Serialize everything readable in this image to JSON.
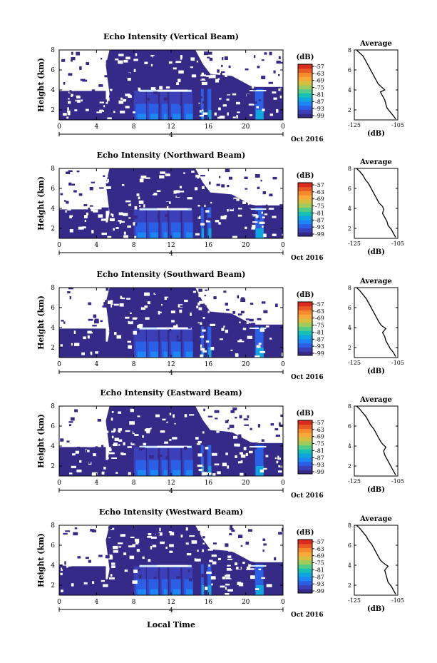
{
  "figure": {
    "xlabel_bottom": "Local Time",
    "date_label": "Oct 2016",
    "date_day": "4",
    "colorbar_units": "(dB)",
    "average_title": "Average",
    "average_xlabel": "(dB)",
    "colormap": [
      "#352a87",
      "#3b3fb8",
      "#2b5fe6",
      "#1c86f5",
      "#0fa6df",
      "#18bfb5",
      "#52cc8a",
      "#9fca5c",
      "#d6be3e",
      "#f9a83a",
      "#f58a2e",
      "#ea5a25",
      "#d92c1c"
    ]
  },
  "chart_data": [
    {
      "type": "heatmap",
      "title": "Echo Intensity (Vertical Beam)",
      "ylabel": "Height (km)",
      "xlim": [
        0,
        24
      ],
      "ylim": [
        1,
        8
      ],
      "xticks": [
        "0",
        "4",
        "8",
        "12",
        "16",
        "20",
        "0"
      ],
      "yticks": [
        "2",
        "4",
        "6",
        "8"
      ],
      "colorbar": {
        "units": "(dB)",
        "ticks": [
          "-57",
          "-63",
          "-69",
          "-75",
          "-81",
          "-87",
          "-93",
          "-99"
        ]
      },
      "average_profile": {
        "title": "Average",
        "xlabel": "(dB)",
        "xlim": [
          -125,
          -105
        ],
        "xticks": [
          "-125",
          "-105"
        ],
        "ylim": [
          1,
          8
        ],
        "yticks": [
          "2",
          "4",
          "6",
          "8"
        ],
        "points": [
          [
            -106,
            1.1
          ],
          [
            -107,
            1.4
          ],
          [
            -108.5,
            1.8
          ],
          [
            -110,
            2.2
          ],
          [
            -110.5,
            2.6
          ],
          [
            -111,
            3.0
          ],
          [
            -112,
            3.4
          ],
          [
            -113,
            3.8
          ],
          [
            -111,
            4.0
          ],
          [
            -112.5,
            4.3
          ],
          [
            -114,
            4.6
          ],
          [
            -115,
            5.0
          ],
          [
            -116,
            5.4
          ],
          [
            -117,
            5.8
          ],
          [
            -118,
            6.2
          ],
          [
            -119,
            6.6
          ],
          [
            -120,
            7.0
          ],
          [
            -121,
            7.4
          ],
          [
            -123,
            7.8
          ],
          [
            -124,
            8.0
          ]
        ]
      }
    },
    {
      "type": "heatmap",
      "title": "Echo Intensity (Northward Beam)",
      "ylabel": "Height (km)",
      "xlim": [
        0,
        24
      ],
      "ylim": [
        1,
        8
      ],
      "xticks": [
        "0",
        "4",
        "8",
        "12",
        "16",
        "20",
        "0"
      ],
      "yticks": [
        "2",
        "4",
        "6",
        "8"
      ],
      "colorbar": {
        "units": "(dB)",
        "ticks": [
          "-57",
          "-63",
          "-69",
          "-75",
          "-81",
          "-87",
          "-93",
          "-99"
        ]
      },
      "average_profile": {
        "title": "Average",
        "xlabel": "(dB)",
        "xlim": [
          -125,
          -105
        ],
        "xticks": [
          "-125",
          "-105"
        ],
        "ylim": [
          1,
          8
        ],
        "yticks": [
          "2",
          "4",
          "6",
          "8"
        ],
        "points": [
          [
            -106,
            1.1
          ],
          [
            -107,
            1.5
          ],
          [
            -108,
            1.9
          ],
          [
            -109.5,
            2.3
          ],
          [
            -110,
            2.7
          ],
          [
            -111,
            3.1
          ],
          [
            -112,
            3.5
          ],
          [
            -111.5,
            3.9
          ],
          [
            -112,
            4.2
          ],
          [
            -113.5,
            4.5
          ],
          [
            -114.5,
            4.9
          ],
          [
            -115.5,
            5.3
          ],
          [
            -116.5,
            5.7
          ],
          [
            -117.5,
            6.1
          ],
          [
            -118.5,
            6.5
          ],
          [
            -120,
            6.9
          ],
          [
            -121,
            7.3
          ],
          [
            -122.5,
            7.7
          ],
          [
            -124,
            8.0
          ]
        ]
      }
    },
    {
      "type": "heatmap",
      "title": "Echo Intensity (Southward Beam)",
      "ylabel": "Height (km)",
      "xlim": [
        0,
        24
      ],
      "ylim": [
        1,
        8
      ],
      "xticks": [
        "0",
        "4",
        "8",
        "12",
        "16",
        "20",
        "0"
      ],
      "yticks": [
        "2",
        "4",
        "6",
        "8"
      ],
      "colorbar": {
        "units": "(dB)",
        "ticks": [
          "-57",
          "-63",
          "-69",
          "-75",
          "-81",
          "-87",
          "-93",
          "-99"
        ]
      },
      "average_profile": {
        "title": "Average",
        "xlabel": "(dB)",
        "xlim": [
          -125,
          -105
        ],
        "xticks": [
          "-125",
          "-105"
        ],
        "ylim": [
          1,
          8
        ],
        "yticks": [
          "2",
          "4",
          "6",
          "8"
        ],
        "points": [
          [
            -106,
            1.1
          ],
          [
            -107,
            1.5
          ],
          [
            -108.5,
            1.9
          ],
          [
            -109.5,
            2.3
          ],
          [
            -110.5,
            2.7
          ],
          [
            -111,
            3.1
          ],
          [
            -112,
            3.5
          ],
          [
            -110.5,
            3.9
          ],
          [
            -112.5,
            4.2
          ],
          [
            -113.5,
            4.5
          ],
          [
            -114.5,
            4.9
          ],
          [
            -115.5,
            5.3
          ],
          [
            -116.5,
            5.7
          ],
          [
            -117.5,
            6.1
          ],
          [
            -118.5,
            6.5
          ],
          [
            -119.5,
            6.9
          ],
          [
            -121,
            7.3
          ],
          [
            -122.5,
            7.7
          ],
          [
            -124,
            8.0
          ]
        ]
      }
    },
    {
      "type": "heatmap",
      "title": "Echo Intensity (Eastward Beam)",
      "ylabel": "Height (km)",
      "xlim": [
        0,
        24
      ],
      "ylim": [
        1,
        8
      ],
      "xticks": [
        "0",
        "4",
        "8",
        "12",
        "16",
        "20",
        "0"
      ],
      "yticks": [
        "2",
        "4",
        "6",
        "8"
      ],
      "colorbar": {
        "units": "(dB)",
        "ticks": [
          "-57",
          "-63",
          "-69",
          "-75",
          "-81",
          "-87",
          "-93",
          "-99"
        ]
      },
      "average_profile": {
        "title": "Average",
        "xlabel": "(dB)",
        "xlim": [
          -125,
          -105
        ],
        "xticks": [
          "-125",
          "-105"
        ],
        "ylim": [
          1,
          8
        ],
        "yticks": [
          "2",
          "4",
          "6",
          "8"
        ],
        "points": [
          [
            -106,
            1.1
          ],
          [
            -107,
            1.5
          ],
          [
            -108,
            1.9
          ],
          [
            -109,
            2.3
          ],
          [
            -110,
            2.7
          ],
          [
            -111,
            3.1
          ],
          [
            -111.5,
            3.5
          ],
          [
            -110.5,
            3.9
          ],
          [
            -112,
            4.2
          ],
          [
            -113,
            4.5
          ],
          [
            -114,
            4.9
          ],
          [
            -115,
            5.3
          ],
          [
            -116,
            5.7
          ],
          [
            -117.5,
            6.1
          ],
          [
            -118.5,
            6.5
          ],
          [
            -119.5,
            6.9
          ],
          [
            -121,
            7.3
          ],
          [
            -122.5,
            7.7
          ],
          [
            -124,
            8.0
          ]
        ]
      }
    },
    {
      "type": "heatmap",
      "title": "Echo Intensity (Westward Beam)",
      "ylabel": "Height (km)",
      "xlim": [
        0,
        24
      ],
      "ylim": [
        1,
        8
      ],
      "xticks": [
        "0",
        "4",
        "8",
        "12",
        "16",
        "20",
        "0"
      ],
      "yticks": [
        "2",
        "4",
        "6",
        "8"
      ],
      "colorbar": {
        "units": "(dB)",
        "ticks": [
          "-57",
          "-63",
          "-69",
          "-75",
          "-81",
          "-87",
          "-93",
          "-99"
        ]
      },
      "average_profile": {
        "title": "Average",
        "xlabel": "(dB)",
        "xlim": [
          -125,
          -105
        ],
        "xticks": [
          "-125",
          "-105"
        ],
        "ylim": [
          1,
          8
        ],
        "yticks": [
          "2",
          "4",
          "6",
          "8"
        ],
        "points": [
          [
            -106,
            1.1
          ],
          [
            -107,
            1.5
          ],
          [
            -108,
            1.9
          ],
          [
            -109.5,
            2.3
          ],
          [
            -110,
            2.7
          ],
          [
            -110.5,
            3.1
          ],
          [
            -111,
            3.5
          ],
          [
            -109.5,
            3.9
          ],
          [
            -111.5,
            4.2
          ],
          [
            -113,
            4.5
          ],
          [
            -114,
            4.9
          ],
          [
            -115,
            5.3
          ],
          [
            -116,
            5.7
          ],
          [
            -117,
            6.1
          ],
          [
            -118.5,
            6.5
          ],
          [
            -119.5,
            6.9
          ],
          [
            -121,
            7.3
          ],
          [
            -122.5,
            7.7
          ],
          [
            -124,
            8.0
          ]
        ]
      }
    }
  ]
}
